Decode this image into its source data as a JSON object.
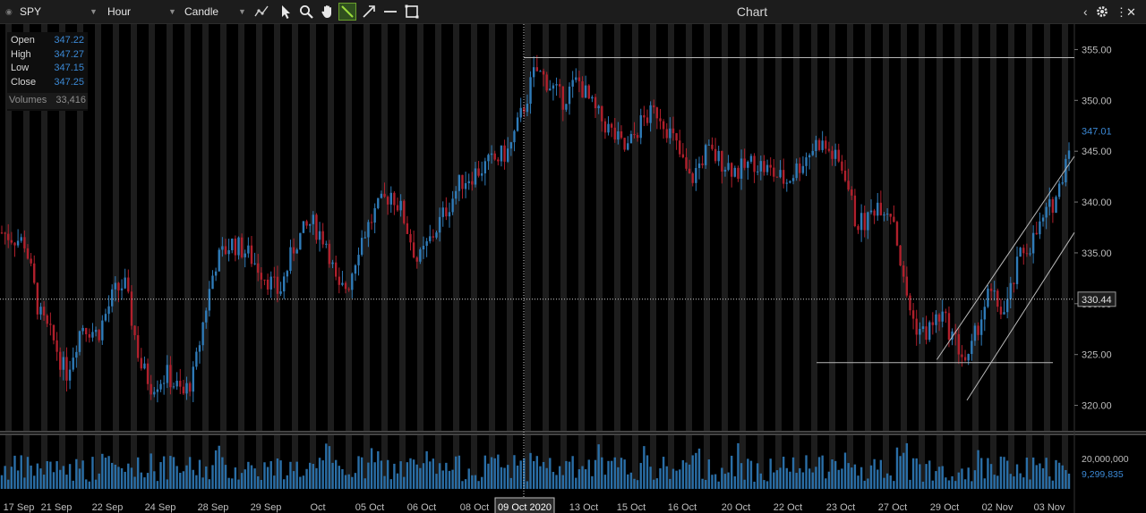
{
  "toolbar": {
    "symbol": "SPY",
    "interval": "Hour",
    "chart_style": "Candle",
    "title": "Chart",
    "tools": [
      {
        "name": "draw-line-icon",
        "active": false
      },
      {
        "name": "pointer-icon",
        "active": false
      },
      {
        "name": "zoom-icon",
        "active": false
      },
      {
        "name": "hand-icon",
        "active": false
      },
      {
        "name": "trendline-icon",
        "active": true
      },
      {
        "name": "arrow-icon",
        "active": false
      },
      {
        "name": "horizontal-line-icon",
        "active": false
      },
      {
        "name": "rectangle-icon",
        "active": false
      }
    ],
    "right_icons": [
      "chevron-left-icon",
      "gear-icon",
      "close-icon"
    ]
  },
  "ohlc": {
    "open_label": "Open",
    "open": "347.22",
    "high_label": "High",
    "high": "347.27",
    "low_label": "Low",
    "low": "347.15",
    "close_label": "Close",
    "close": "347.25",
    "volumes_label": "Volumes",
    "volumes": "33,416"
  },
  "colors": {
    "up": "#2f7bb8",
    "down": "#b0202c",
    "accent": "#3b88d4",
    "line": "#b8b8b8",
    "grid": "#1d1d1d"
  },
  "chart_data": {
    "type": "candlestick",
    "symbol": "SPY",
    "interval": "Hour",
    "ylim": [
      317.5,
      357.5
    ],
    "y_ticks": [
      "355.00",
      "350.00",
      "345.00",
      "340.00",
      "335.00",
      "330.00",
      "325.00",
      "320.00"
    ],
    "last_price": "347.01",
    "crosshair_price": "330.44",
    "crosshair_date": "09 Oct 2020",
    "x_labels": [
      "17 Sep",
      "21 Sep",
      "22 Sep",
      "24 Sep",
      "28 Sep",
      "29 Sep",
      "Oct",
      "05 Oct",
      "06 Oct",
      "08 Oct",
      "09 Oct 2020",
      "13 Oct",
      "15 Oct",
      "16 Oct",
      "20 Oct",
      "22 Oct",
      "23 Oct",
      "27 Oct",
      "29 Oct",
      "02 Nov",
      "03 Nov"
    ],
    "volume_ticks": [
      "20,000,000",
      "9,299,835"
    ],
    "close_path": [
      [
        0,
        337
      ],
      [
        0.022,
        336
      ],
      [
        0.035,
        329
      ],
      [
        0.05,
        326
      ],
      [
        0.06,
        323
      ],
      [
        0.075,
        328
      ],
      [
        0.09,
        327
      ],
      [
        0.105,
        331
      ],
      [
        0.115,
        332
      ],
      [
        0.13,
        324
      ],
      [
        0.14,
        322
      ],
      [
        0.155,
        323
      ],
      [
        0.17,
        321
      ],
      [
        0.18,
        323
      ],
      [
        0.19,
        329
      ],
      [
        0.2,
        334
      ],
      [
        0.215,
        336
      ],
      [
        0.23,
        335
      ],
      [
        0.245,
        333
      ],
      [
        0.26,
        331
      ],
      [
        0.275,
        336
      ],
      [
        0.29,
        338
      ],
      [
        0.305,
        336
      ],
      [
        0.315,
        331
      ],
      [
        0.325,
        332
      ],
      [
        0.335,
        336
      ],
      [
        0.35,
        339
      ],
      [
        0.365,
        341
      ],
      [
        0.375,
        339
      ],
      [
        0.39,
        334
      ],
      [
        0.4,
        336
      ],
      [
        0.415,
        339
      ],
      [
        0.43,
        342
      ],
      [
        0.445,
        343
      ],
      [
        0.46,
        344
      ],
      [
        0.475,
        345
      ],
      [
        0.485,
        348
      ],
      [
        0.5,
        353
      ],
      [
        0.51,
        352
      ],
      [
        0.525,
        350
      ],
      [
        0.54,
        352
      ],
      [
        0.555,
        349
      ],
      [
        0.57,
        347
      ],
      [
        0.585,
        345
      ],
      [
        0.6,
        348
      ],
      [
        0.615,
        349
      ],
      [
        0.63,
        346
      ],
      [
        0.645,
        342
      ],
      [
        0.66,
        345
      ],
      [
        0.675,
        344
      ],
      [
        0.69,
        343
      ],
      [
        0.705,
        344
      ],
      [
        0.72,
        343
      ],
      [
        0.735,
        342
      ],
      [
        0.75,
        344
      ],
      [
        0.765,
        346
      ],
      [
        0.775,
        345
      ],
      [
        0.79,
        343
      ],
      [
        0.8,
        338
      ],
      [
        0.81,
        338
      ],
      [
        0.82,
        340
      ],
      [
        0.835,
        339
      ],
      [
        0.845,
        332
      ],
      [
        0.855,
        328
      ],
      [
        0.865,
        327
      ],
      [
        0.88,
        329
      ],
      [
        0.895,
        326
      ],
      [
        0.905,
        324
      ],
      [
        0.915,
        328
      ],
      [
        0.925,
        331
      ],
      [
        0.94,
        329
      ],
      [
        0.955,
        335
      ],
      [
        0.965,
        336
      ],
      [
        0.98,
        339
      ],
      [
        0.99,
        341
      ],
      [
        1,
        346
      ]
    ],
    "annotations": [
      {
        "type": "horizontal",
        "y": 354.2,
        "x_from": 0.4875,
        "x_to": 1
      },
      {
        "type": "horizontal",
        "y": 324.2,
        "x_from": 0.76,
        "x_to": 0.98
      },
      {
        "type": "channel-upper",
        "from": [
          0.872,
          324.5
        ],
        "to": [
          1,
          344.5
        ]
      },
      {
        "type": "channel-lower",
        "from": [
          0.9,
          320.5
        ],
        "to": [
          1,
          337.0
        ]
      }
    ]
  }
}
